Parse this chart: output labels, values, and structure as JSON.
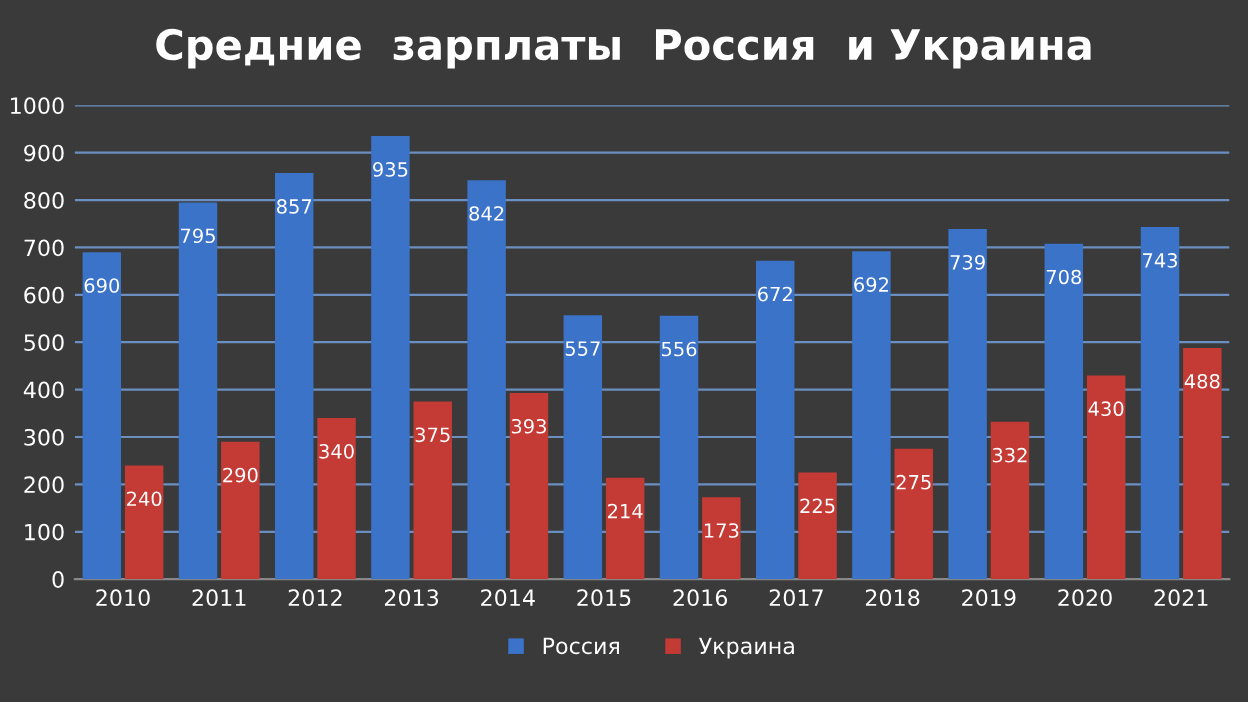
{
  "chart_data": {
    "type": "bar",
    "title": "Средние  зарплаты  Россия  и Украина",
    "categories": [
      "2010",
      "2011",
      "2012",
      "2013",
      "2014",
      "2015",
      "2016",
      "2017",
      "2018",
      "2019",
      "2020",
      "2021"
    ],
    "series": [
      {
        "name": "Россия",
        "color": "#3b73c8",
        "values": [
          690,
          795,
          857,
          935,
          842,
          557,
          556,
          672,
          692,
          739,
          708,
          743
        ]
      },
      {
        "name": "Украина",
        "color": "#c43a35",
        "values": [
          240,
          290,
          340,
          375,
          393,
          214,
          173,
          225,
          275,
          332,
          430,
          488
        ]
      }
    ],
    "ylim": [
      0,
      1000
    ],
    "yticks": [
      0,
      100,
      200,
      300,
      400,
      500,
      600,
      700,
      800,
      900,
      1000
    ],
    "grid": "y",
    "legend": "bottom",
    "data_labels": true
  }
}
